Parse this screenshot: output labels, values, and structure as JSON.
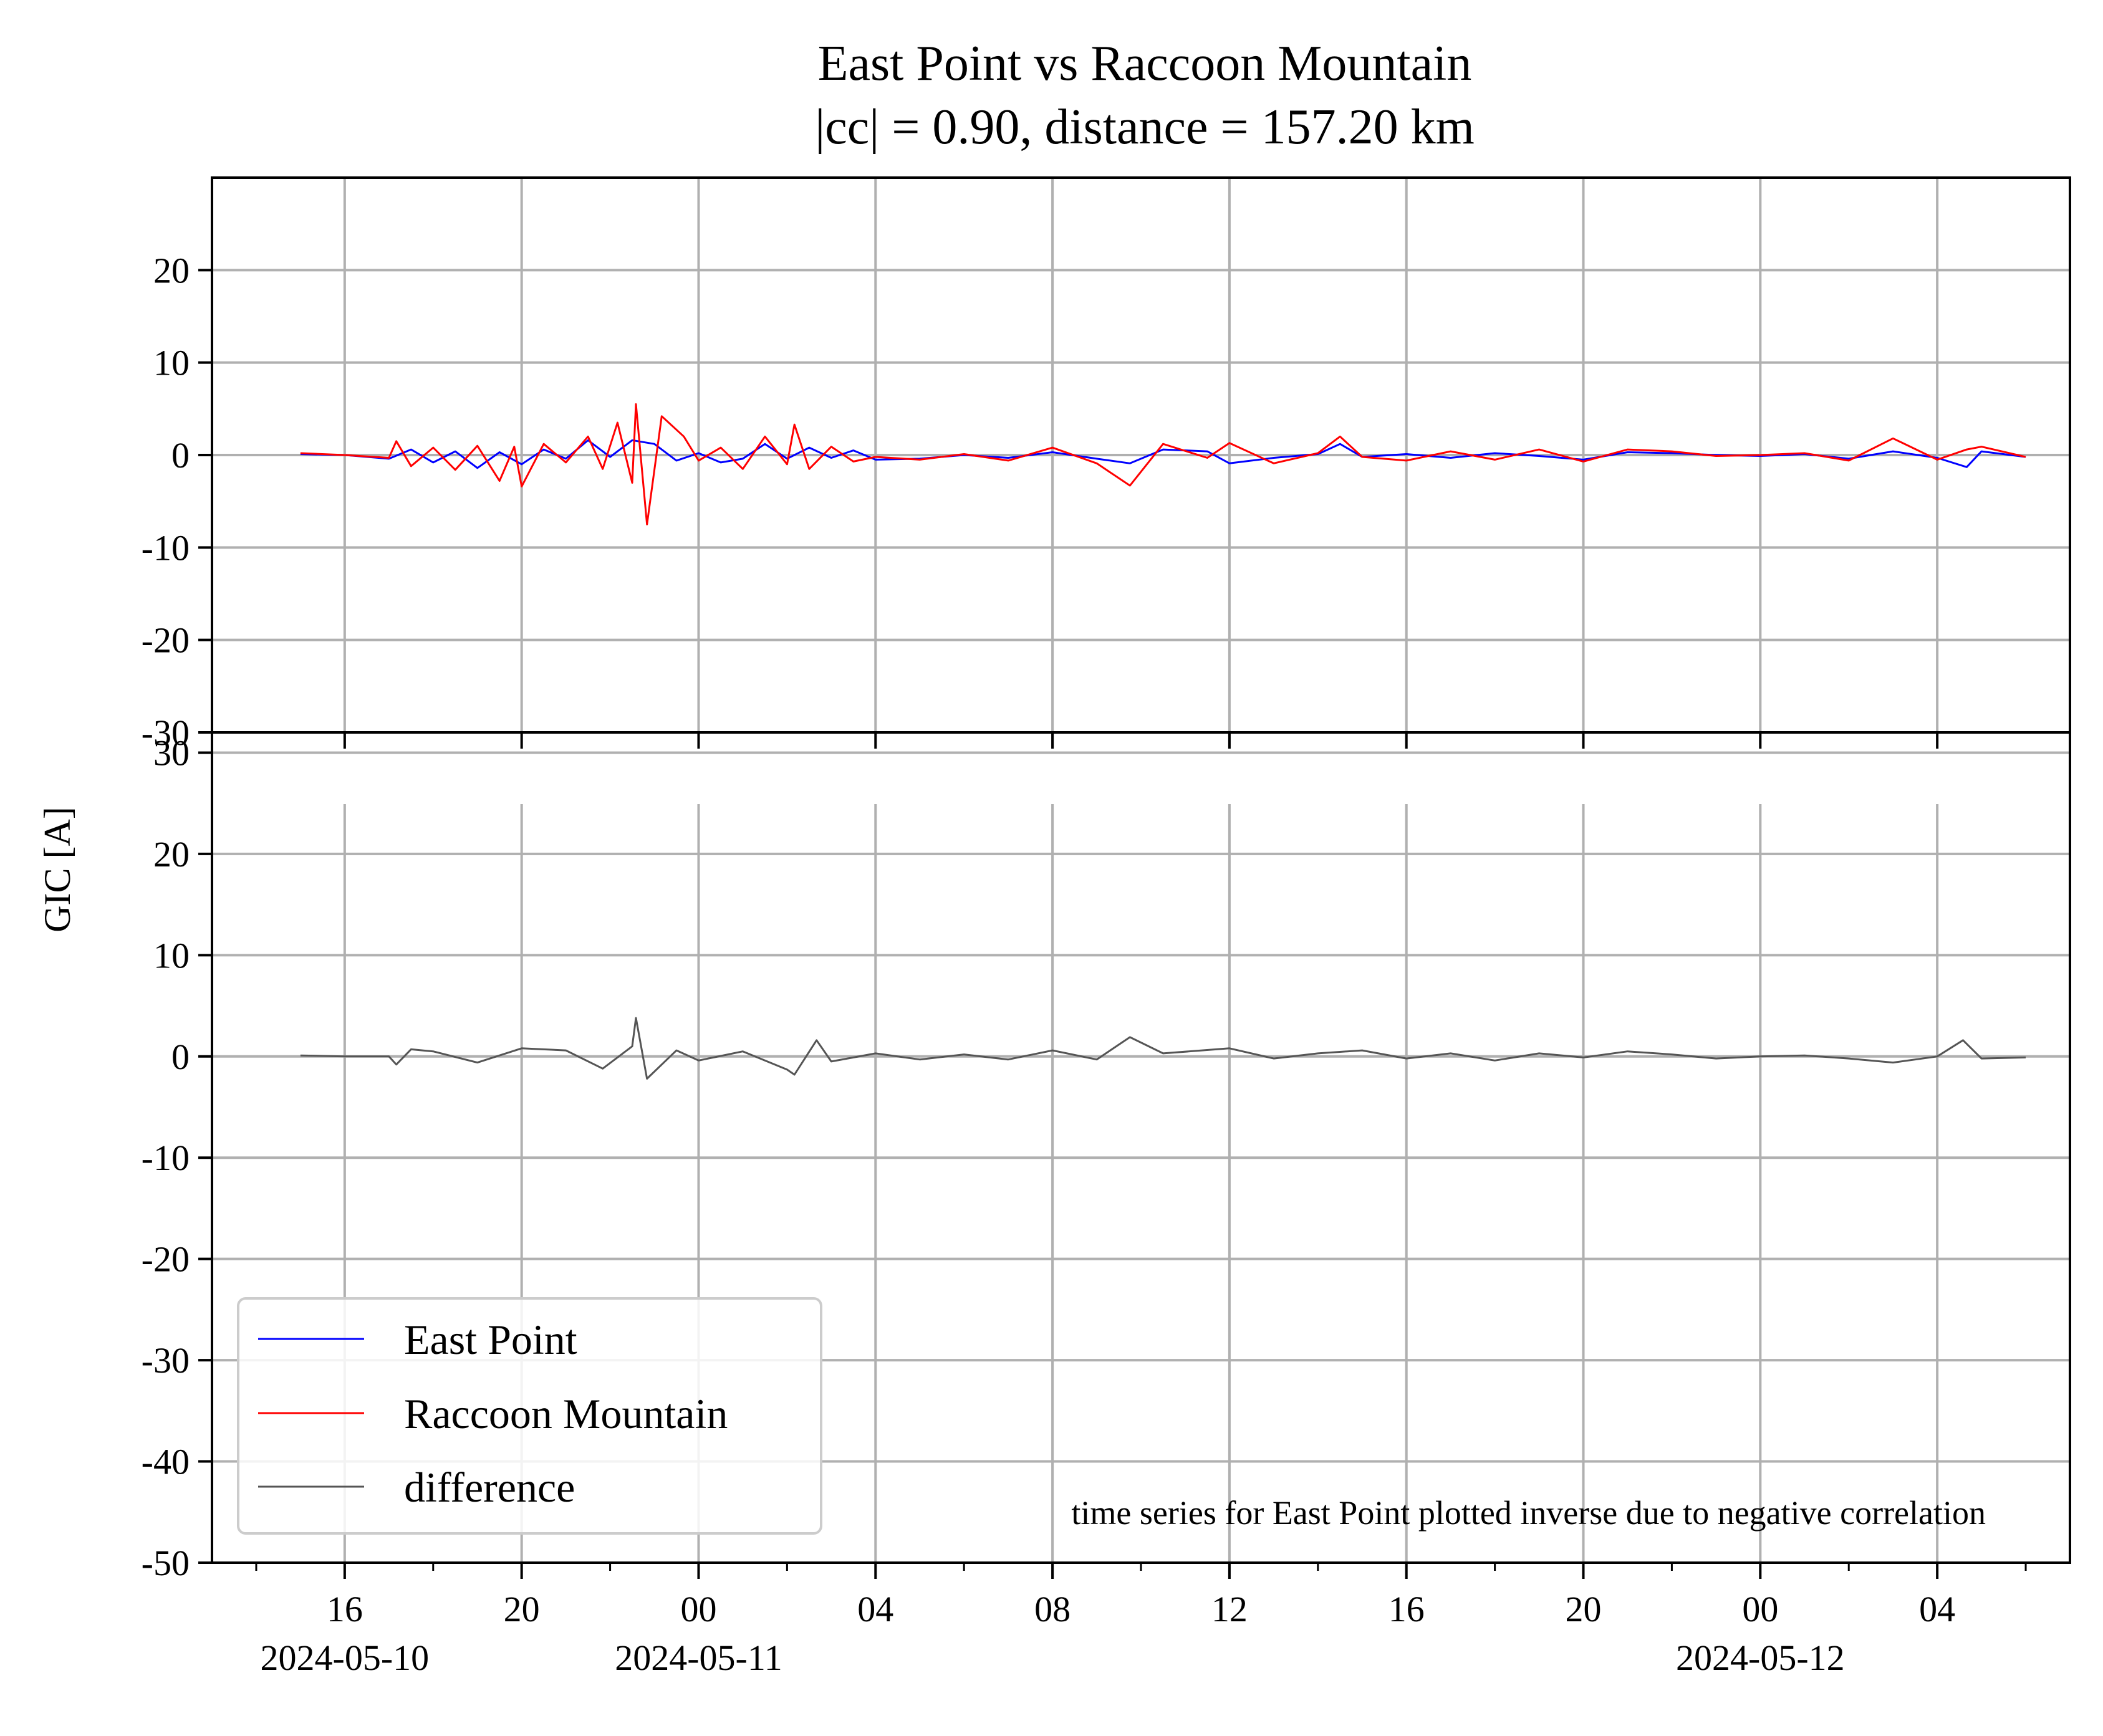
{
  "chart_data": {
    "type": "line",
    "title": "East Point vs Raccoon Mountain",
    "subtitle": "|cc| = 0.90, distance = 157.20 km",
    "ylabel": "GIC [A]",
    "annotation": "time series for East Point plotted inverse due to negative correlation",
    "x_range": [
      "2024-05-10 13:00",
      "2024-05-12 07:00"
    ],
    "x_ticks": [
      {
        "time": "2024-05-10 16:00",
        "label": "16",
        "date_label": "2024-05-10"
      },
      {
        "time": "2024-05-10 20:00",
        "label": "20",
        "date_label": ""
      },
      {
        "time": "2024-05-11 00:00",
        "label": "00",
        "date_label": "2024-05-11"
      },
      {
        "time": "2024-05-11 04:00",
        "label": "04",
        "date_label": ""
      },
      {
        "time": "2024-05-11 08:00",
        "label": "08",
        "date_label": ""
      },
      {
        "time": "2024-05-11 12:00",
        "label": "12",
        "date_label": ""
      },
      {
        "time": "2024-05-11 16:00",
        "label": "16",
        "date_label": ""
      },
      {
        "time": "2024-05-11 20:00",
        "label": "20",
        "date_label": ""
      },
      {
        "time": "2024-05-12 00:00",
        "label": "00",
        "date_label": "2024-05-12"
      },
      {
        "time": "2024-05-12 04:00",
        "label": "04",
        "date_label": ""
      }
    ],
    "grid": true,
    "legend": {
      "location": "lower-left",
      "entries": [
        {
          "label": "East Point",
          "color": "#0000ff"
        },
        {
          "label": "Raccoon Mountain",
          "color": "#ff0000"
        },
        {
          "label": "difference",
          "color": "#555555"
        }
      ]
    },
    "panels": [
      {
        "name": "top",
        "ylim": [
          -30,
          30
        ],
        "y_ticks": [
          {
            "value": 20,
            "label": "20"
          },
          {
            "value": 10,
            "label": "10"
          },
          {
            "value": 0,
            "label": "0"
          },
          {
            "value": -10,
            "label": "-10"
          },
          {
            "value": -20,
            "label": "-20"
          },
          {
            "value": -30,
            "label": "-30"
          }
        ],
        "series": [
          {
            "name": "East Point",
            "color": "#0000ff",
            "x": [
              "2024-05-10 15:00",
              "2024-05-10 16:00",
              "2024-05-10 17:00",
              "2024-05-10 17:30",
              "2024-05-10 18:00",
              "2024-05-10 18:30",
              "2024-05-10 19:00",
              "2024-05-10 19:30",
              "2024-05-10 20:00",
              "2024-05-10 20:30",
              "2024-05-10 21:00",
              "2024-05-10 21:30",
              "2024-05-10 22:00",
              "2024-05-10 22:30",
              "2024-05-10 23:00",
              "2024-05-10 23:30",
              "2024-05-11 00:00",
              "2024-05-11 00:30",
              "2024-05-11 01:00",
              "2024-05-11 01:30",
              "2024-05-11 02:00",
              "2024-05-11 02:30",
              "2024-05-11 03:00",
              "2024-05-11 03:30",
              "2024-05-11 04:00",
              "2024-05-11 05:00",
              "2024-05-11 06:00",
              "2024-05-11 07:00",
              "2024-05-11 08:00",
              "2024-05-11 09:00",
              "2024-05-11 09:45",
              "2024-05-11 10:30",
              "2024-05-11 11:30",
              "2024-05-11 12:00",
              "2024-05-11 13:00",
              "2024-05-11 14:00",
              "2024-05-11 14:30",
              "2024-05-11 15:00",
              "2024-05-11 16:00",
              "2024-05-11 17:00",
              "2024-05-11 18:00",
              "2024-05-11 19:00",
              "2024-05-11 20:00",
              "2024-05-11 21:00",
              "2024-05-11 22:00",
              "2024-05-11 23:00",
              "2024-05-12 00:00",
              "2024-05-12 01:00",
              "2024-05-12 02:00",
              "2024-05-12 03:00",
              "2024-05-12 04:00",
              "2024-05-12 04:40",
              "2024-05-12 05:00",
              "2024-05-12 06:00"
            ],
            "y": [
              0.1,
              0.0,
              -0.4,
              0.6,
              -0.8,
              0.4,
              -1.4,
              0.3,
              -1.0,
              0.6,
              -0.4,
              1.6,
              -0.2,
              1.6,
              1.2,
              -0.6,
              0.2,
              -0.8,
              -0.4,
              1.2,
              -0.4,
              0.8,
              -0.3,
              0.5,
              -0.5,
              -0.4,
              0.0,
              -0.3,
              0.3,
              -0.4,
              -0.9,
              0.6,
              0.4,
              -0.9,
              -0.3,
              0.1,
              1.2,
              -0.2,
              0.1,
              -0.3,
              0.2,
              -0.1,
              -0.5,
              0.3,
              0.2,
              0.0,
              -0.1,
              0.1,
              -0.4,
              0.4,
              -0.3,
              -1.3,
              0.4,
              -0.2
            ]
          },
          {
            "name": "Raccoon Mountain",
            "color": "#ff0000",
            "x": [
              "2024-05-10 15:00",
              "2024-05-10 16:00",
              "2024-05-10 17:00",
              "2024-05-10 17:10",
              "2024-05-10 17:30",
              "2024-05-10 18:00",
              "2024-05-10 18:30",
              "2024-05-10 19:00",
              "2024-05-10 19:30",
              "2024-05-10 19:50",
              "2024-05-10 20:00",
              "2024-05-10 20:30",
              "2024-05-10 21:00",
              "2024-05-10 21:30",
              "2024-05-10 21:50",
              "2024-05-10 22:10",
              "2024-05-10 22:30",
              "2024-05-10 22:35",
              "2024-05-10 22:50",
              "2024-05-10 23:10",
              "2024-05-10 23:40",
              "2024-05-11 00:00",
              "2024-05-11 00:30",
              "2024-05-11 01:00",
              "2024-05-11 01:30",
              "2024-05-11 02:00",
              "2024-05-11 02:10",
              "2024-05-11 02:30",
              "2024-05-11 03:00",
              "2024-05-11 03:30",
              "2024-05-11 04:00",
              "2024-05-11 05:00",
              "2024-05-11 06:00",
              "2024-05-11 07:00",
              "2024-05-11 08:00",
              "2024-05-11 09:00",
              "2024-05-11 09:45",
              "2024-05-11 10:30",
              "2024-05-11 11:30",
              "2024-05-11 12:00",
              "2024-05-11 13:00",
              "2024-05-11 14:00",
              "2024-05-11 14:30",
              "2024-05-11 15:00",
              "2024-05-11 16:00",
              "2024-05-11 17:00",
              "2024-05-11 18:00",
              "2024-05-11 19:00",
              "2024-05-11 20:00",
              "2024-05-11 21:00",
              "2024-05-11 22:00",
              "2024-05-11 23:00",
              "2024-05-12 00:00",
              "2024-05-12 01:00",
              "2024-05-12 02:00",
              "2024-05-12 03:00",
              "2024-05-12 04:00",
              "2024-05-12 04:40",
              "2024-05-12 05:00",
              "2024-05-12 06:00"
            ],
            "y": [
              0.2,
              0.0,
              -0.3,
              1.5,
              -1.2,
              0.8,
              -1.6,
              1.0,
              -2.8,
              0.9,
              -3.4,
              1.2,
              -0.8,
              2.0,
              -1.5,
              3.5,
              -3.0,
              5.5,
              -7.5,
              4.2,
              2.0,
              -0.6,
              0.8,
              -1.5,
              2.0,
              -1.0,
              3.3,
              -1.5,
              0.9,
              -0.7,
              -0.2,
              -0.5,
              0.1,
              -0.6,
              0.8,
              -0.9,
              -3.3,
              1.2,
              -0.3,
              1.3,
              -0.9,
              0.2,
              2.0,
              -0.2,
              -0.6,
              0.4,
              -0.5,
              0.6,
              -0.7,
              0.6,
              0.4,
              -0.1,
              0.0,
              0.2,
              -0.6,
              1.8,
              -0.5,
              0.6,
              0.9,
              -0.2
            ]
          }
        ]
      },
      {
        "name": "bottom",
        "ylim": [
          -50,
          32
        ],
        "y_ticks": [
          {
            "value": 30,
            "label": "30"
          },
          {
            "value": 20,
            "label": "20"
          },
          {
            "value": 10,
            "label": "10"
          },
          {
            "value": 0,
            "label": "0"
          },
          {
            "value": -10,
            "label": "-10"
          },
          {
            "value": -20,
            "label": "-20"
          },
          {
            "value": -30,
            "label": "-30"
          },
          {
            "value": -40,
            "label": "-40"
          },
          {
            "value": -50,
            "label": "-50"
          }
        ],
        "series": [
          {
            "name": "difference",
            "color": "#555555",
            "x": [
              "2024-05-10 15:00",
              "2024-05-10 16:00",
              "2024-05-10 17:00",
              "2024-05-10 17:10",
              "2024-05-10 17:30",
              "2024-05-10 18:00",
              "2024-05-10 19:00",
              "2024-05-10 20:00",
              "2024-05-10 21:00",
              "2024-05-10 21:50",
              "2024-05-10 22:30",
              "2024-05-10 22:35",
              "2024-05-10 22:50",
              "2024-05-10 23:30",
              "2024-05-11 00:00",
              "2024-05-11 01:00",
              "2024-05-11 02:00",
              "2024-05-11 02:10",
              "2024-05-11 02:40",
              "2024-05-11 03:00",
              "2024-05-11 04:00",
              "2024-05-11 05:00",
              "2024-05-11 06:00",
              "2024-05-11 07:00",
              "2024-05-11 08:00",
              "2024-05-11 09:00",
              "2024-05-11 09:45",
              "2024-05-11 10:30",
              "2024-05-11 12:00",
              "2024-05-11 13:00",
              "2024-05-11 14:00",
              "2024-05-11 15:00",
              "2024-05-11 16:00",
              "2024-05-11 17:00",
              "2024-05-11 18:00",
              "2024-05-11 19:00",
              "2024-05-11 20:00",
              "2024-05-11 21:00",
              "2024-05-11 22:00",
              "2024-05-11 23:00",
              "2024-05-12 00:00",
              "2024-05-12 01:00",
              "2024-05-12 02:00",
              "2024-05-12 03:00",
              "2024-05-12 04:00",
              "2024-05-12 04:35",
              "2024-05-12 05:00",
              "2024-05-12 06:00"
            ],
            "y": [
              0.1,
              0.0,
              0.0,
              -0.8,
              0.7,
              0.5,
              -0.6,
              0.8,
              0.6,
              -1.2,
              1.0,
              3.8,
              -2.2,
              0.6,
              -0.4,
              0.5,
              -1.3,
              -1.8,
              1.6,
              -0.5,
              0.3,
              -0.3,
              0.2,
              -0.3,
              0.6,
              -0.3,
              1.9,
              0.3,
              0.8,
              -0.2,
              0.3,
              0.6,
              -0.2,
              0.3,
              -0.4,
              0.3,
              -0.1,
              0.5,
              0.2,
              -0.2,
              0.0,
              0.1,
              -0.2,
              -0.6,
              0.0,
              1.6,
              -0.2,
              -0.1
            ]
          }
        ]
      }
    ]
  }
}
